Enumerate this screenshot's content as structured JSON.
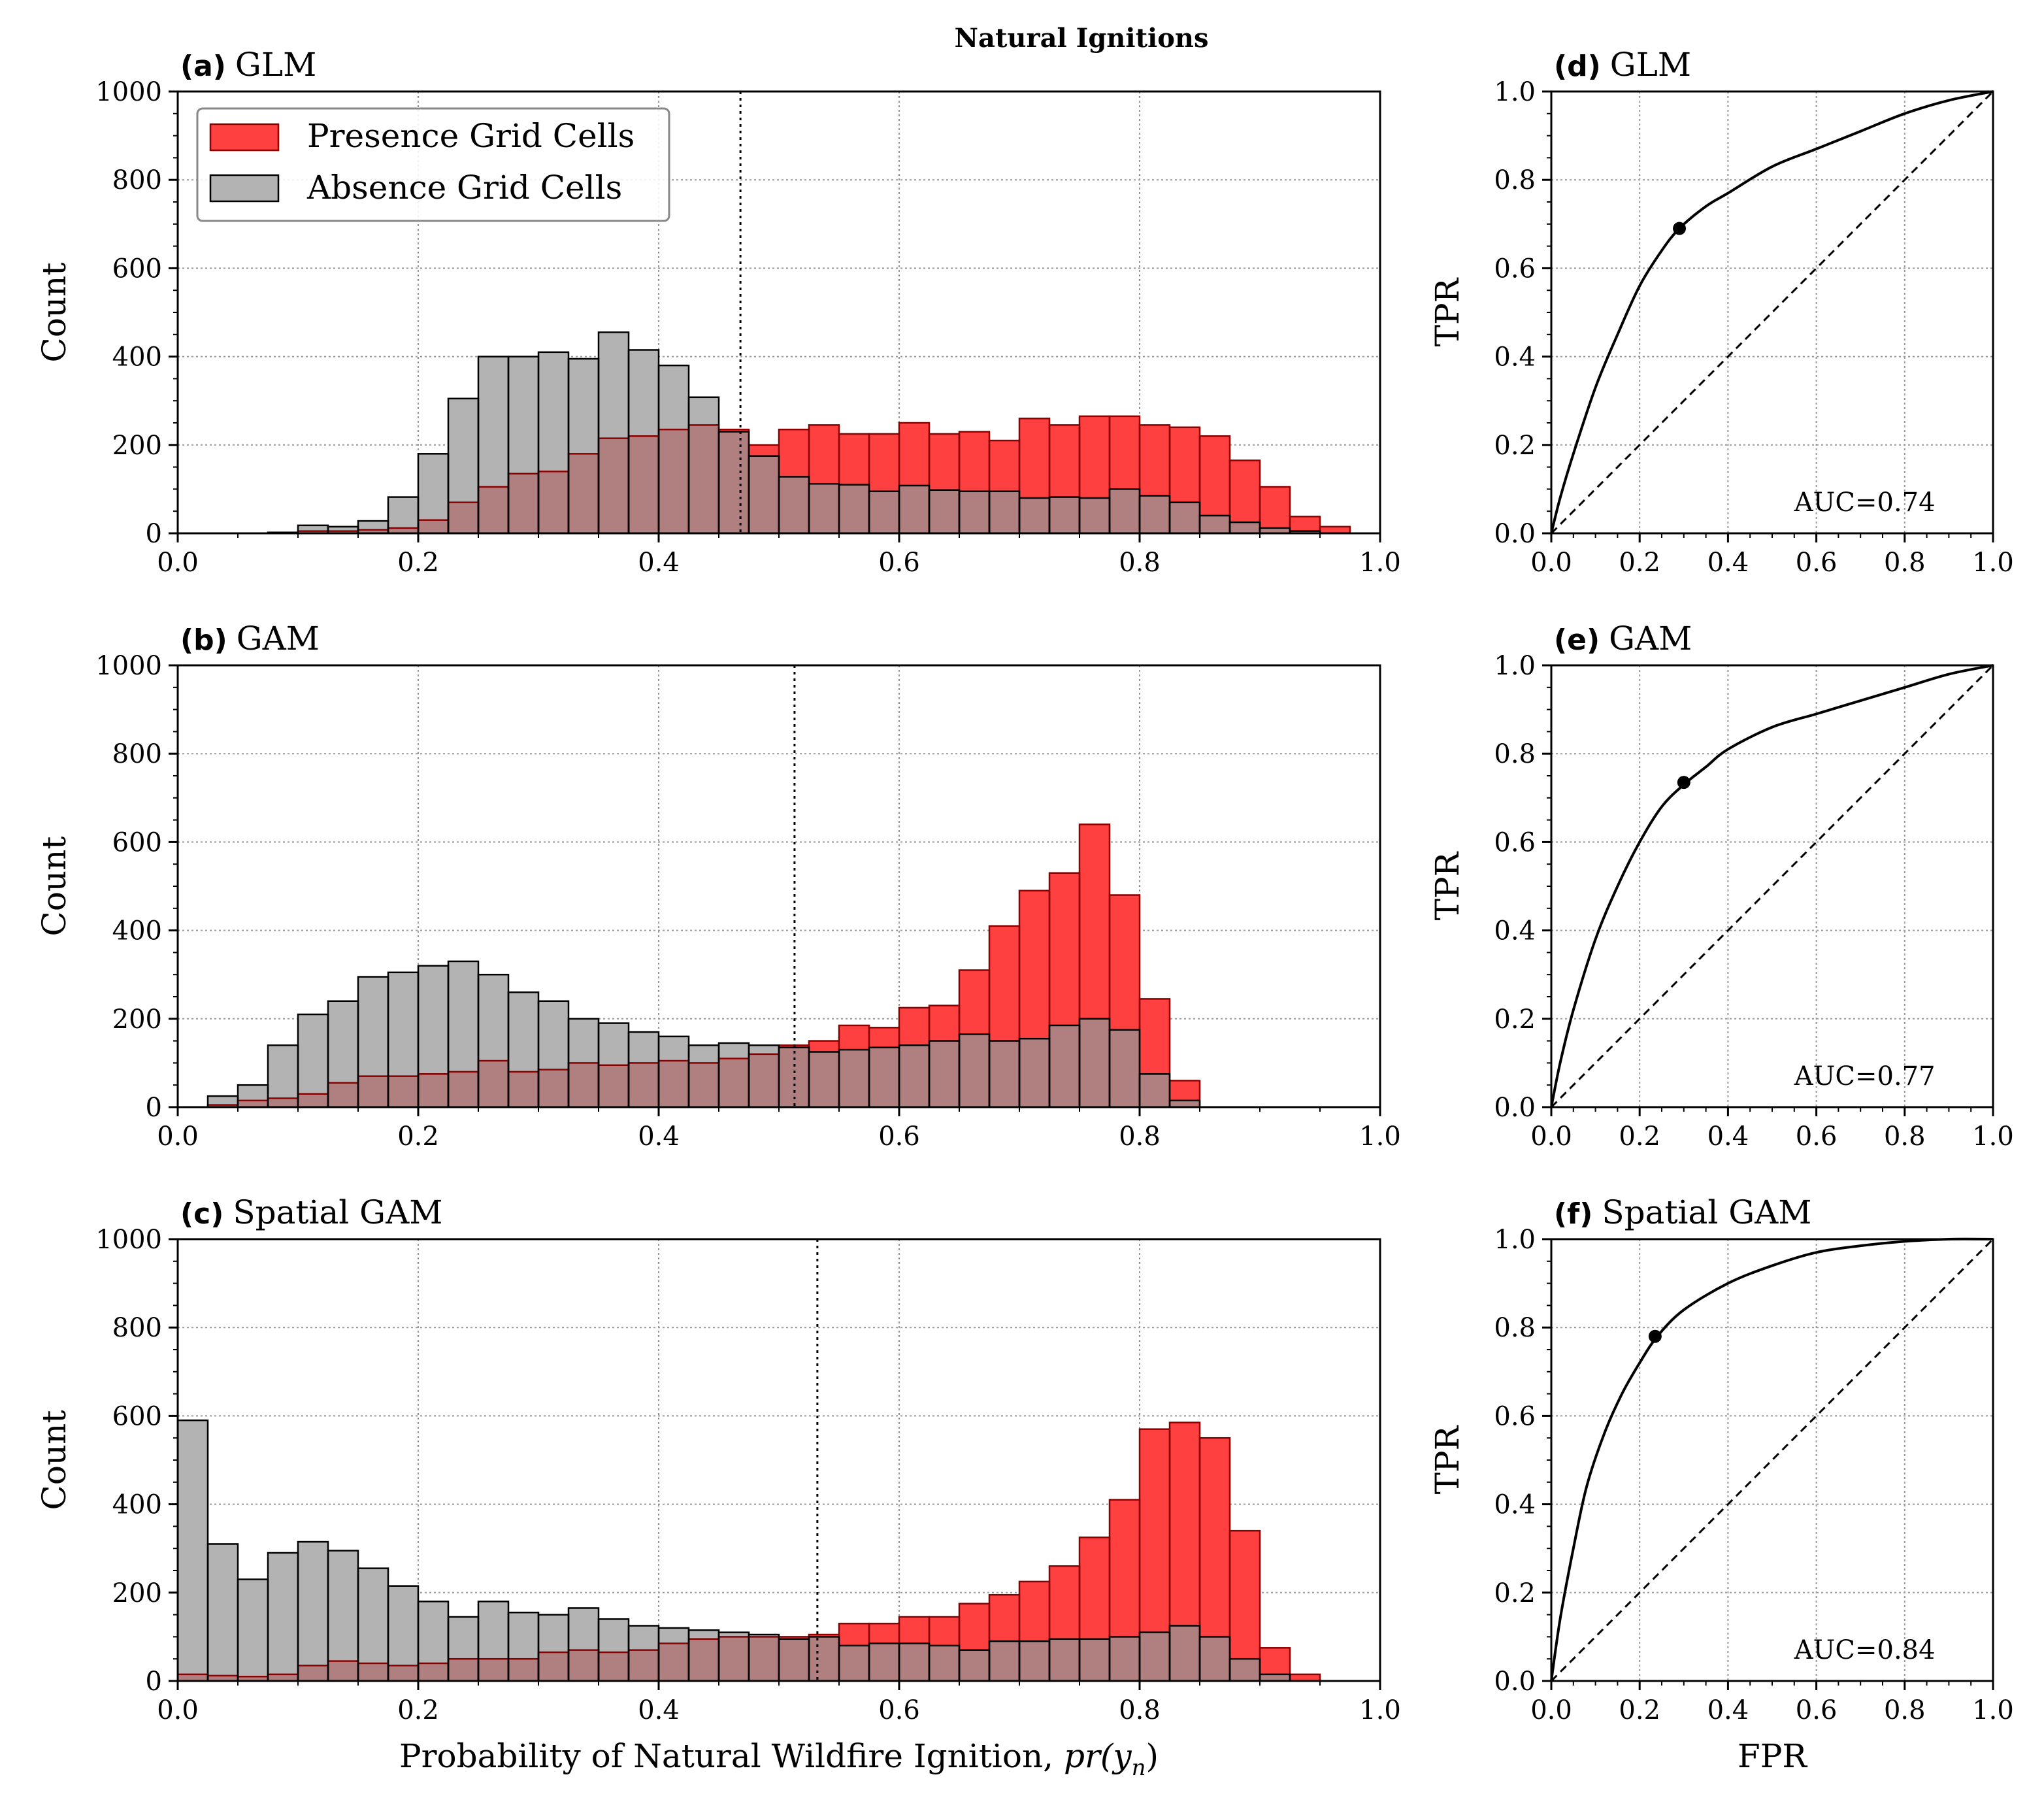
{
  "figure": {
    "title": "Natural Ignitions",
    "colors": {
      "presence": "#ff4040",
      "absence": "#b3b3b3",
      "overlap": "#b08080",
      "presence_edge": "#8b0000",
      "absence_edge": "#000000"
    }
  },
  "legend": {
    "presence_label": "Presence Grid Cells",
    "absence_label": "Absence Grid Cells"
  },
  "chart_data": [
    {
      "id": "a",
      "type": "bar",
      "letter": "(a)",
      "title": "GLM",
      "ylabel": "Count",
      "xlabel": "",
      "xlim": [
        0,
        1
      ],
      "ylim": [
        0,
        1000
      ],
      "xticks": [
        "0.0",
        "0.2",
        "0.4",
        "0.6",
        "0.8",
        "1.0"
      ],
      "yticks": [
        "0",
        "200",
        "400",
        "600",
        "800",
        "1000"
      ],
      "bin_width": 0.025,
      "bin_starts": [
        0.0,
        0.025,
        0.05,
        0.075,
        0.1,
        0.125,
        0.15,
        0.175,
        0.2,
        0.225,
        0.25,
        0.275,
        0.3,
        0.325,
        0.35,
        0.375,
        0.4,
        0.425,
        0.45,
        0.475,
        0.5,
        0.525,
        0.55,
        0.575,
        0.6,
        0.625,
        0.65,
        0.675,
        0.7,
        0.725,
        0.75,
        0.775,
        0.8,
        0.825,
        0.85,
        0.875,
        0.9,
        0.925,
        0.95,
        0.975
      ],
      "series": [
        {
          "name": "Absence Grid Cells",
          "values": [
            0,
            0,
            0,
            2,
            18,
            15,
            28,
            82,
            180,
            305,
            400,
            400,
            410,
            395,
            455,
            415,
            380,
            308,
            230,
            175,
            128,
            112,
            110,
            95,
            108,
            98,
            95,
            95,
            80,
            82,
            80,
            100,
            85,
            70,
            40,
            25,
            12,
            5,
            0,
            0
          ]
        },
        {
          "name": "Presence Grid Cells",
          "values": [
            0,
            0,
            0,
            0,
            5,
            5,
            8,
            12,
            30,
            70,
            105,
            135,
            140,
            180,
            215,
            220,
            235,
            245,
            235,
            200,
            235,
            245,
            225,
            225,
            250,
            225,
            230,
            210,
            260,
            245,
            265,
            265,
            245,
            240,
            220,
            165,
            105,
            38,
            15,
            0
          ]
        }
      ],
      "threshold": 0.468,
      "has_legend": true
    },
    {
      "id": "b",
      "type": "bar",
      "letter": "(b)",
      "title": "GAM",
      "ylabel": "Count",
      "xlabel": "",
      "xlim": [
        0,
        1
      ],
      "ylim": [
        0,
        1000
      ],
      "xticks": [
        "0.0",
        "0.2",
        "0.4",
        "0.6",
        "0.8",
        "1.0"
      ],
      "yticks": [
        "0",
        "200",
        "400",
        "600",
        "800",
        "1000"
      ],
      "bin_width": 0.025,
      "bin_starts": [
        0.0,
        0.025,
        0.05,
        0.075,
        0.1,
        0.125,
        0.15,
        0.175,
        0.2,
        0.225,
        0.25,
        0.275,
        0.3,
        0.325,
        0.35,
        0.375,
        0.4,
        0.425,
        0.45,
        0.475,
        0.5,
        0.525,
        0.55,
        0.575,
        0.6,
        0.625,
        0.65,
        0.675,
        0.7,
        0.725,
        0.75,
        0.775,
        0.8,
        0.825,
        0.85,
        0.875,
        0.9,
        0.925,
        0.95,
        0.975
      ],
      "series": [
        {
          "name": "Absence Grid Cells",
          "values": [
            0,
            25,
            50,
            140,
            210,
            240,
            295,
            305,
            320,
            330,
            300,
            260,
            240,
            200,
            190,
            170,
            160,
            140,
            145,
            140,
            135,
            125,
            130,
            135,
            140,
            150,
            165,
            150,
            155,
            185,
            200,
            175,
            75,
            15,
            0,
            0,
            0,
            0,
            0,
            0
          ]
        },
        {
          "name": "Presence Grid Cells",
          "values": [
            0,
            5,
            15,
            20,
            30,
            55,
            70,
            70,
            75,
            80,
            105,
            80,
            85,
            100,
            95,
            100,
            105,
            100,
            110,
            120,
            140,
            150,
            185,
            180,
            225,
            230,
            310,
            410,
            490,
            530,
            640,
            480,
            245,
            60,
            0,
            0,
            0,
            0,
            0,
            0
          ]
        }
      ],
      "threshold": 0.513,
      "has_legend": false
    },
    {
      "id": "c",
      "type": "bar",
      "letter": "(c)",
      "title": "Spatial GAM",
      "ylabel": "Count",
      "xlabel": "Probability of Natural Wildfire Ignition, ",
      "xlabel_math": "pr(y_n)",
      "xlim": [
        0,
        1
      ],
      "ylim": [
        0,
        1000
      ],
      "xticks": [
        "0.0",
        "0.2",
        "0.4",
        "0.6",
        "0.8",
        "1.0"
      ],
      "yticks": [
        "0",
        "200",
        "400",
        "600",
        "800",
        "1000"
      ],
      "bin_width": 0.025,
      "bin_starts": [
        0.0,
        0.025,
        0.05,
        0.075,
        0.1,
        0.125,
        0.15,
        0.175,
        0.2,
        0.225,
        0.25,
        0.275,
        0.3,
        0.325,
        0.35,
        0.375,
        0.4,
        0.425,
        0.45,
        0.475,
        0.5,
        0.525,
        0.55,
        0.575,
        0.6,
        0.625,
        0.65,
        0.675,
        0.7,
        0.725,
        0.75,
        0.775,
        0.8,
        0.825,
        0.85,
        0.875,
        0.9,
        0.925,
        0.95,
        0.975
      ],
      "series": [
        {
          "name": "Absence Grid Cells",
          "values": [
            590,
            310,
            230,
            290,
            315,
            295,
            255,
            215,
            180,
            145,
            180,
            155,
            150,
            165,
            140,
            125,
            120,
            115,
            110,
            105,
            95,
            100,
            80,
            85,
            85,
            80,
            70,
            90,
            90,
            95,
            95,
            100,
            110,
            125,
            100,
            50,
            15,
            0,
            0,
            0
          ]
        },
        {
          "name": "Presence Grid Cells",
          "values": [
            15,
            12,
            10,
            15,
            35,
            45,
            40,
            35,
            40,
            50,
            50,
            50,
            65,
            70,
            65,
            70,
            85,
            95,
            100,
            100,
            100,
            105,
            130,
            130,
            145,
            145,
            175,
            195,
            225,
            260,
            325,
            410,
            570,
            585,
            550,
            340,
            75,
            15,
            0,
            0
          ]
        }
      ],
      "threshold": 0.532,
      "has_legend": false
    },
    {
      "id": "d",
      "type": "line",
      "letter": "(d)",
      "title": "GLM",
      "ylabel": "TPR",
      "xlabel": "",
      "xlim": [
        0,
        1
      ],
      "ylim": [
        0,
        1
      ],
      "xticks": [
        "0.0",
        "0.2",
        "0.4",
        "0.6",
        "0.8",
        "1.0"
      ],
      "yticks": [
        "0.0",
        "0.2",
        "0.4",
        "0.6",
        "0.8",
        "1.0"
      ],
      "auc": "AUC=0.74",
      "x": [
        0,
        0.02,
        0.05,
        0.1,
        0.15,
        0.2,
        0.25,
        0.29,
        0.35,
        0.4,
        0.5,
        0.6,
        0.7,
        0.8,
        0.9,
        1.0
      ],
      "y": [
        0,
        0.08,
        0.18,
        0.33,
        0.45,
        0.56,
        0.64,
        0.69,
        0.74,
        0.77,
        0.83,
        0.87,
        0.91,
        0.95,
        0.98,
        1.0
      ],
      "operating_point": [
        0.29,
        0.69
      ]
    },
    {
      "id": "e",
      "type": "line",
      "letter": "(e)",
      "title": "GAM",
      "ylabel": "TPR",
      "xlabel": "",
      "xlim": [
        0,
        1
      ],
      "ylim": [
        0,
        1
      ],
      "xticks": [
        "0.0",
        "0.2",
        "0.4",
        "0.6",
        "0.8",
        "1.0"
      ],
      "yticks": [
        "0.0",
        "0.2",
        "0.4",
        "0.6",
        "0.8",
        "1.0"
      ],
      "auc": "AUC=0.77",
      "x": [
        0,
        0.02,
        0.05,
        0.1,
        0.15,
        0.2,
        0.25,
        0.3,
        0.35,
        0.4,
        0.5,
        0.6,
        0.7,
        0.8,
        0.9,
        1.0
      ],
      "y": [
        0,
        0.1,
        0.22,
        0.38,
        0.5,
        0.6,
        0.68,
        0.73,
        0.77,
        0.81,
        0.86,
        0.89,
        0.92,
        0.95,
        0.98,
        1.0
      ],
      "operating_point": [
        0.3,
        0.735
      ]
    },
    {
      "id": "f",
      "type": "line",
      "letter": "(f)",
      "title": "Spatial GAM",
      "ylabel": "TPR",
      "xlabel": "FPR",
      "xlim": [
        0,
        1
      ],
      "ylim": [
        0,
        1
      ],
      "xticks": [
        "0.0",
        "0.2",
        "0.4",
        "0.6",
        "0.8",
        "1.0"
      ],
      "yticks": [
        "0.0",
        "0.2",
        "0.4",
        "0.6",
        "0.8",
        "1.0"
      ],
      "auc": "AUC=0.84",
      "x": [
        0,
        0.02,
        0.05,
        0.08,
        0.12,
        0.16,
        0.2,
        0.24,
        0.3,
        0.4,
        0.5,
        0.6,
        0.7,
        0.8,
        0.9,
        1.0
      ],
      "y": [
        0,
        0.14,
        0.3,
        0.44,
        0.56,
        0.65,
        0.72,
        0.78,
        0.84,
        0.9,
        0.94,
        0.97,
        0.985,
        0.995,
        1.0,
        1.0
      ],
      "operating_point": [
        0.235,
        0.78
      ]
    }
  ]
}
